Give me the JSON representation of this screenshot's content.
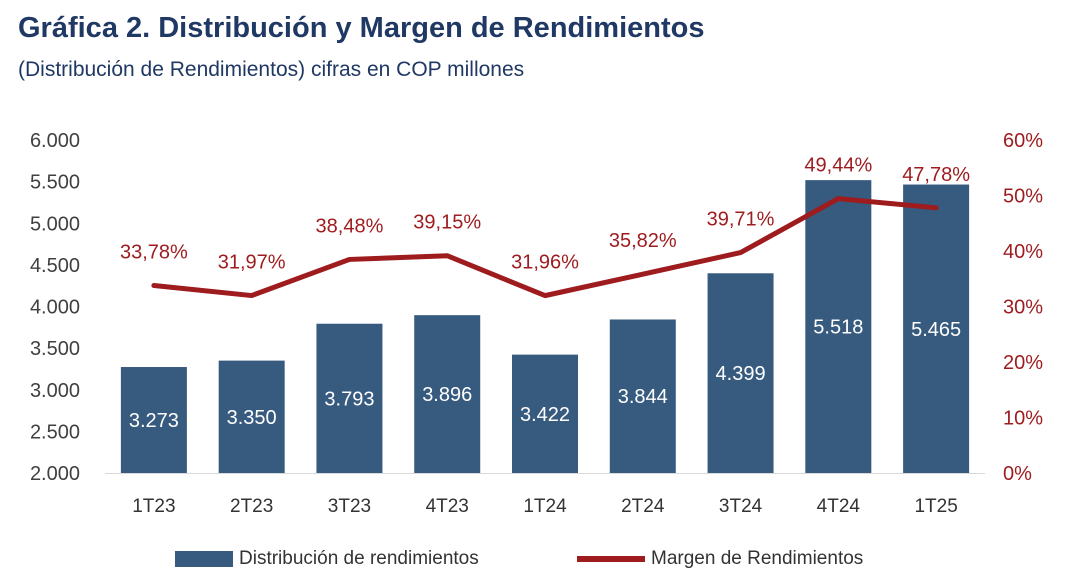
{
  "header": {
    "title": "Gráfica 2. Distribución y Margen de Rendimientos",
    "subtitle": "(Distribución de Rendimientos) cifras en COP millones"
  },
  "colors": {
    "bar": "#375a7f",
    "line": "#9e1b1e",
    "title": "#1f3864",
    "axis_left_text": "#404040",
    "axis_right_text": "#9e1b1e"
  },
  "chart_data": {
    "type": "bar+line",
    "categories": [
      "1T23",
      "2T23",
      "3T23",
      "4T23",
      "1T24",
      "2T24",
      "3T24",
      "4T24",
      "1T25"
    ],
    "series": [
      {
        "name": "Distribución de rendimientos",
        "type": "bar",
        "axis": "left",
        "values": [
          3273,
          3350,
          3793,
          3896,
          3422,
          3844,
          4399,
          5518,
          5465
        ],
        "labels": [
          "3.273",
          "3.350",
          "3.793",
          "3.896",
          "3.422",
          "3.844",
          "4.399",
          "5.518",
          "5.465"
        ]
      },
      {
        "name": "Margen de Rendimientos",
        "type": "line",
        "axis": "right",
        "values": [
          33.78,
          31.97,
          38.48,
          39.15,
          31.96,
          35.82,
          39.71,
          49.44,
          47.78
        ],
        "labels": [
          "33,78%",
          "31,97%",
          "38,48%",
          "39,15%",
          "31,96%",
          "35,82%",
          "39,71%",
          "49,44%",
          "47,78%"
        ]
      }
    ],
    "y_left": {
      "ylim": [
        2000,
        6000
      ],
      "ticks": [
        2000,
        2500,
        3000,
        3500,
        4000,
        4500,
        5000,
        5500,
        6000
      ],
      "tick_labels": [
        "2.000",
        "2.500",
        "3.000",
        "3.500",
        "4.000",
        "4.500",
        "5.000",
        "5.500",
        "6.000"
      ]
    },
    "y_right": {
      "ylim": [
        0,
        60
      ],
      "ticks": [
        0,
        10,
        20,
        30,
        40,
        50,
        60
      ],
      "tick_labels": [
        "0%",
        "10%",
        "20%",
        "30%",
        "40%",
        "50%",
        "60%"
      ]
    },
    "grid": false,
    "legend": "bottom"
  }
}
